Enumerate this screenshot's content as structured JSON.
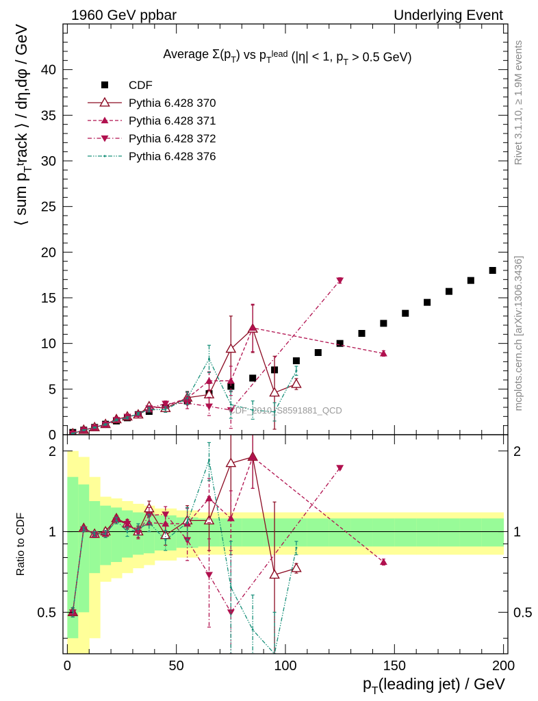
{
  "header": {
    "left": "1960 GeV ppbar",
    "right": "Underlying Event"
  },
  "side_labels": {
    "rivet": "Rivet 3.1.10, ≥ 1.9M events",
    "mcplots": "mcplots.cern.ch [arXiv:1306.3436]"
  },
  "watermark": "CDF_2010_S8591881_QCD",
  "chart_data": [
    {
      "type": "scatter",
      "title": "Average Σ(p_T) vs p_T^lead (|η| < 1, p_T > 0.5 GeV)",
      "xlabel": "p_T(leading jet) / GeV",
      "ylabel": "⟨ sum p_T^track ⟩ / dη,dφ / GeV",
      "xlim": [
        -2,
        202
      ],
      "ylim": [
        0,
        45
      ],
      "xticks": [
        0,
        50,
        100,
        150,
        200
      ],
      "yticks": [
        0,
        5,
        10,
        15,
        20,
        25,
        30,
        35,
        40
      ],
      "legend_position": "top-left",
      "series": [
        {
          "name": "CDF",
          "color": "#000000",
          "x": [
            2.5,
            7.5,
            12.5,
            17.5,
            22.5,
            27.5,
            32.5,
            37.5,
            45,
            55,
            65,
            75,
            85,
            95,
            105,
            115,
            125,
            135,
            145,
            155,
            165,
            175,
            185,
            195
          ],
          "y": [
            0.25,
            0.5,
            0.8,
            1.15,
            1.5,
            1.85,
            2.2,
            2.55,
            2.95,
            3.7,
            4.5,
            5.3,
            6.2,
            7.1,
            8.1,
            9.0,
            10.0,
            11.1,
            12.2,
            13.3,
            14.5,
            15.7,
            16.9,
            18.0
          ]
        },
        {
          "name": "Pythia 6.428 370",
          "color": "#8b0a22",
          "x": [
            2.5,
            7.5,
            12.5,
            17.5,
            22.5,
            27.5,
            32.5,
            37.5,
            45,
            55,
            65,
            75,
            85,
            95,
            105
          ],
          "y": [
            0.13,
            0.52,
            0.8,
            1.15,
            1.68,
            1.98,
            2.2,
            3.1,
            2.9,
            4.05,
            4.4,
            9.4,
            11.6,
            4.6,
            5.55
          ],
          "yerr": [
            0.03,
            0.05,
            0.06,
            0.08,
            0.1,
            0.12,
            0.15,
            0.25,
            0.3,
            0.7,
            1.2,
            3.6,
            2.6,
            4.0,
            0.6
          ]
        },
        {
          "name": "Pythia 6.428 371",
          "color": "#b0104e",
          "x": [
            2.5,
            7.5,
            12.5,
            17.5,
            22.5,
            27.5,
            32.5,
            37.5,
            45,
            55,
            65,
            75,
            85,
            145
          ],
          "y": [
            0.12,
            0.52,
            0.77,
            1.12,
            1.7,
            1.95,
            2.25,
            2.75,
            3.2,
            4.0,
            5.9,
            5.9,
            11.7,
            8.9
          ],
          "yerr": [
            0.03,
            0.05,
            0.06,
            0.08,
            0.1,
            0.12,
            0.15,
            0.25,
            0.3,
            0.6,
            1.0,
            1.6,
            2.6,
            0.3
          ]
        },
        {
          "name": "Pythia 6.428 372",
          "color": "#b0104e",
          "x": [
            2.5,
            7.5,
            12.5,
            17.5,
            22.5,
            27.5,
            32.5,
            37.5,
            45,
            55,
            65,
            75,
            125
          ],
          "y": [
            0.14,
            0.5,
            0.8,
            1.12,
            1.62,
            1.98,
            2.2,
            2.9,
            3.4,
            3.45,
            3.1,
            2.7,
            16.9
          ],
          "yerr": [
            0.03,
            0.05,
            0.06,
            0.08,
            0.1,
            0.12,
            0.15,
            0.25,
            0.3,
            0.6,
            1.0,
            2.0,
            0.3
          ]
        },
        {
          "name": "Pythia 6.428 376",
          "color": "#18907a",
          "x": [
            2.5,
            7.5,
            12.5,
            17.5,
            22.5,
            27.5,
            32.5,
            37.5,
            45,
            55,
            65,
            75,
            85,
            95,
            105
          ],
          "y": [
            0.14,
            0.5,
            0.78,
            1.12,
            1.62,
            1.85,
            2.3,
            2.75,
            2.75,
            4.0,
            8.3,
            3.3,
            2.7,
            2.5,
            7.0
          ],
          "yerr": [
            0.03,
            0.05,
            0.06,
            0.08,
            0.1,
            0.12,
            0.15,
            0.25,
            0.3,
            0.7,
            1.5,
            1.5,
            1.0,
            1.0,
            0.5
          ]
        }
      ]
    },
    {
      "type": "scatter",
      "title": "",
      "xlabel": "p_T(leading jet) / GeV",
      "ylabel": "Ratio to CDF",
      "xlim": [
        -2,
        202
      ],
      "ylim": [
        0.35,
        2.3
      ],
      "xticks": [
        0,
        50,
        100,
        150,
        200
      ],
      "yticks": [
        0.5,
        1,
        2
      ],
      "reference_line": 1,
      "uncertainty_bands": {
        "x_edges": [
          0,
          5,
          10,
          15,
          20,
          25,
          30,
          35,
          40,
          50,
          60,
          70,
          80,
          90,
          100,
          110,
          120,
          130,
          140,
          150,
          160,
          170,
          180,
          190,
          200
        ],
        "inner_halfwidth": [
          0.6,
          0.5,
          0.3,
          0.25,
          0.23,
          0.2,
          0.18,
          0.17,
          0.15,
          0.13,
          0.12,
          0.12,
          0.12,
          0.12,
          0.12,
          0.12,
          0.12,
          0.12,
          0.12,
          0.12,
          0.12,
          0.12,
          0.12,
          0.12
        ],
        "outer_halfwidth": [
          1.0,
          0.9,
          0.6,
          0.35,
          0.33,
          0.3,
          0.27,
          0.25,
          0.22,
          0.2,
          0.18,
          0.18,
          0.18,
          0.18,
          0.18,
          0.18,
          0.18,
          0.18,
          0.18,
          0.18,
          0.18,
          0.18,
          0.18,
          0.18
        ],
        "inner_color": "#98fb98",
        "outer_color": "#ffff99"
      },
      "series": [
        {
          "name": "Pythia 6.428 370",
          "color": "#8b0a22",
          "x": [
            2.5,
            7.5,
            12.5,
            17.5,
            22.5,
            27.5,
            32.5,
            37.5,
            45,
            55,
            65,
            75,
            85,
            95,
            105
          ],
          "y": [
            0.5,
            1.03,
            0.98,
            1.0,
            1.12,
            1.07,
            1.0,
            1.22,
            0.97,
            1.1,
            1.1,
            1.8,
            1.9,
            0.69,
            0.73
          ],
          "yerr": [
            0.02,
            0.02,
            0.02,
            0.03,
            0.03,
            0.04,
            0.05,
            0.08,
            0.08,
            0.15,
            0.25,
            0.68,
            0.45,
            0.6,
            0.03
          ]
        },
        {
          "name": "Pythia 6.428 371",
          "color": "#b0104e",
          "x": [
            2.5,
            7.5,
            12.5,
            17.5,
            22.5,
            27.5,
            32.5,
            37.5,
            45,
            55,
            65,
            75,
            85,
            145
          ],
          "y": [
            0.5,
            1.03,
            0.97,
            0.98,
            1.12,
            1.06,
            1.02,
            1.08,
            1.07,
            1.07,
            1.33,
            1.12,
            1.9,
            0.77
          ],
          "yerr": [
            0.02,
            0.02,
            0.02,
            0.03,
            0.03,
            0.04,
            0.05,
            0.08,
            0.08,
            0.15,
            0.25,
            0.3,
            0.45,
            0.02
          ]
        },
        {
          "name": "Pythia 6.428 372",
          "color": "#b0104e",
          "x": [
            2.5,
            7.5,
            12.5,
            17.5,
            22.5,
            27.5,
            32.5,
            37.5,
            45,
            55,
            65,
            75,
            125
          ],
          "y": [
            0.5,
            1.02,
            0.98,
            0.98,
            1.1,
            1.07,
            0.99,
            1.15,
            1.16,
            0.93,
            0.69,
            0.5,
            1.73
          ],
          "yerr": [
            0.02,
            0.02,
            0.02,
            0.03,
            0.03,
            0.04,
            0.05,
            0.08,
            0.08,
            0.15,
            0.25,
            0.35,
            0.02
          ]
        },
        {
          "name": "Pythia 6.428 376",
          "color": "#18907a",
          "x": [
            2.5,
            7.5,
            12.5,
            17.5,
            22.5,
            27.5,
            32.5,
            37.5,
            45,
            55,
            65,
            75,
            85,
            95,
            105
          ],
          "y": [
            0.5,
            1.02,
            0.98,
            0.98,
            1.1,
            1.0,
            1.02,
            1.08,
            0.93,
            1.08,
            1.85,
            0.62,
            0.43,
            0.35,
            0.87
          ],
          "yerr": [
            0.02,
            0.02,
            0.02,
            0.03,
            0.03,
            0.04,
            0.05,
            0.08,
            0.08,
            0.15,
            0.3,
            0.3,
            0.15,
            0.15,
            0.05
          ]
        }
      ]
    }
  ]
}
